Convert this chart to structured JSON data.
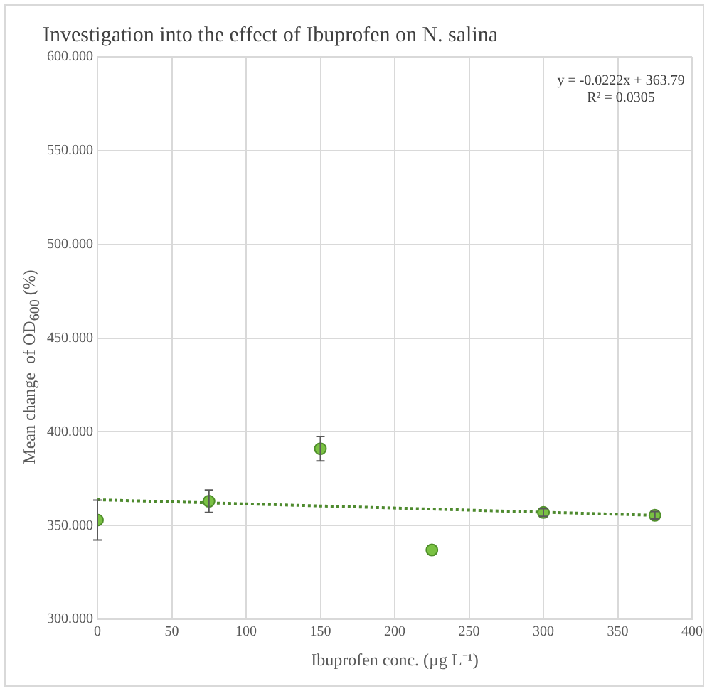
{
  "chart_data": {
    "type": "scatter",
    "title": "Investigation into the effect of Ibuprofen on N. salina",
    "xlabel": "Ibuprofen conc. (µg L⁻¹)",
    "ylabel": "Mean change  of OD$_{600}$ (%)",
    "annotations": [
      "y = -0.0222x + 363.79",
      "R² = 0.0305"
    ],
    "series": [
      {
        "color": "#7ac143",
        "x": [
          0,
          75,
          150,
          225,
          300,
          375
        ],
        "values": [
          353,
          363,
          391,
          337,
          357,
          355.5
        ],
        "errors": [
          10.6,
          6,
          6.5,
          null,
          2,
          2
        ],
        "marker": "circle"
      },
      {
        "type": "line",
        "color": "#4e8a2e",
        "x": [
          0,
          375
        ],
        "values": [
          363.8,
          355.5
        ],
        "line_style": "dotted"
      }
    ],
    "xlim": [
      0,
      400
    ],
    "xticks": [
      0,
      50,
      100,
      150,
      200,
      250,
      300,
      350,
      400
    ],
    "ylim": [
      300,
      600
    ],
    "yticks": [
      {
        "value": 300,
        "label": "300.000"
      },
      {
        "value": 350,
        "label": "350.000"
      },
      {
        "value": 400,
        "label": "400.000"
      },
      {
        "value": 450,
        "label": "450.000"
      },
      {
        "value": 500,
        "label": "500.000"
      },
      {
        "value": 550,
        "label": "550.000"
      },
      {
        "value": 600,
        "label": "600.000"
      }
    ],
    "grid": true,
    "legend": false
  }
}
